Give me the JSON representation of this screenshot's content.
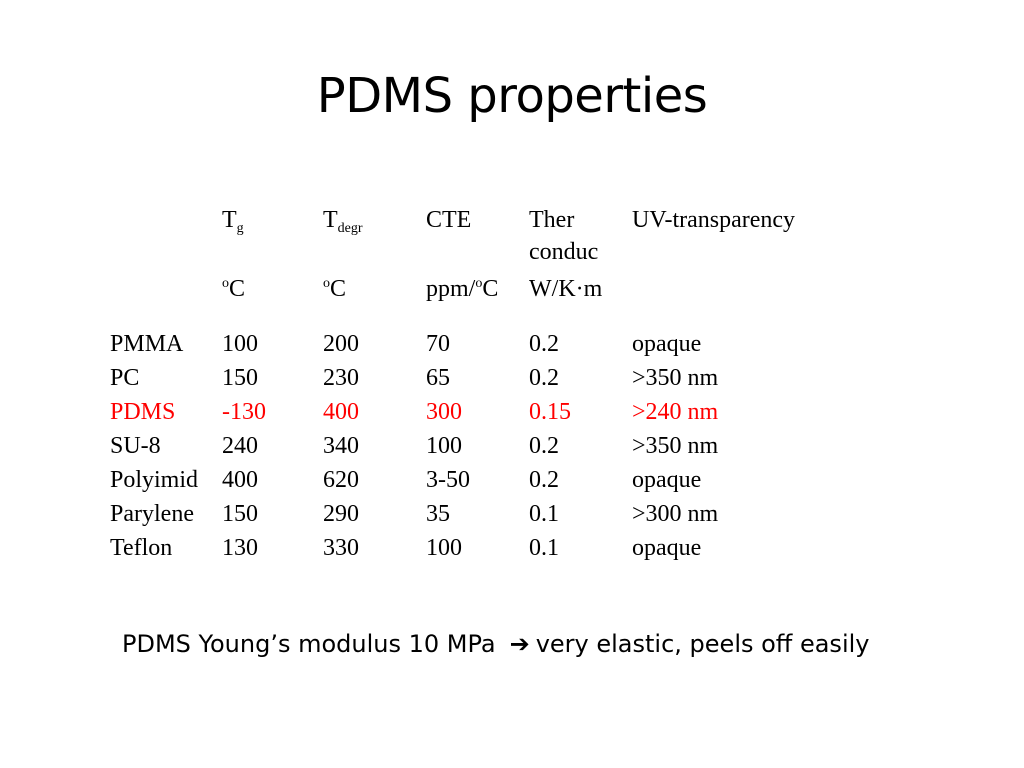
{
  "slide": {
    "title": "PDMS properties"
  },
  "table": {
    "header": {
      "tg_main": "T",
      "tg_sub": "g",
      "tdegr_main": "T",
      "tdegr_sub": "degr",
      "cte": "CTE",
      "ther_line1": "Ther",
      "ther_line2": "conduc",
      "uv": "UV-transparency"
    },
    "units": {
      "tg_sup": "o",
      "tg_unit": "C",
      "tdegr_sup": "o",
      "tdegr_unit": "C",
      "cte_prefix": "ppm/",
      "cte_sup": "o",
      "cte_unit": "C",
      "ther": "W/K·m"
    },
    "highlight_color": "#ff0000",
    "rows": [
      {
        "material": "PMMA",
        "tg": "100",
        "tdegr": "200",
        "cte": "70",
        "ther": "0.2",
        "uv": "opaque"
      },
      {
        "material": "PC",
        "tg": "150",
        "tdegr": "230",
        "cte": "65",
        "ther": "0.2",
        "uv": ">350 nm"
      },
      {
        "material": "PDMS",
        "tg": "-130",
        "tdegr": "400",
        "cte": "300",
        "ther": "0.15",
        "uv": ">240 nm"
      },
      {
        "material": "SU-8",
        "tg": "240",
        "tdegr": "340",
        "cte": "100",
        "ther": "0.2",
        "uv": ">350 nm"
      },
      {
        "material": "Polyimid",
        "tg": "400",
        "tdegr": "620",
        "cte": "3-50",
        "ther": "0.2",
        "uv": "opaque"
      },
      {
        "material": "Parylene",
        "tg": "150",
        "tdegr": "290",
        "cte": "35",
        "ther": "0.1",
        "uv": ">300 nm"
      },
      {
        "material": "Teflon",
        "tg": "130",
        "tdegr": "330",
        "cte": "100",
        "ther": "0.1",
        "uv": "opaque"
      }
    ]
  },
  "note": {
    "part1": "PDMS Young’s modulus 10 MPa",
    "arrow_icon": "right-arrow-icon",
    "arrow_glyph": "➔",
    "part2": "very elastic, peels off easily"
  }
}
